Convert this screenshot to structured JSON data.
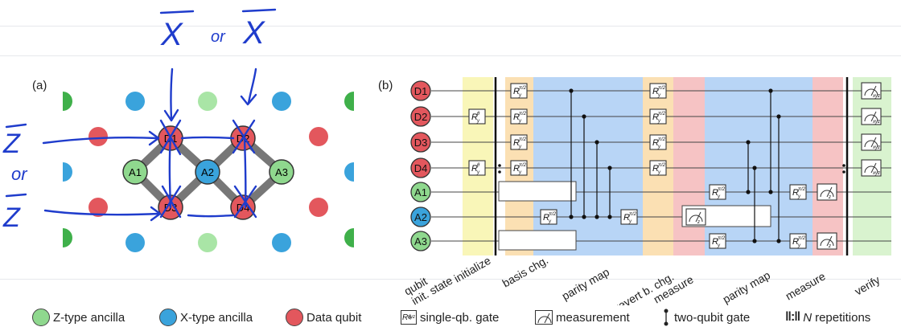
{
  "panel_a": {
    "label": "(a)",
    "data_qubits": [
      "D1",
      "D2",
      "D3",
      "D4"
    ],
    "ancillas": [
      "A1",
      "A2",
      "A3"
    ]
  },
  "annotations": {
    "top_left": "X",
    "top_or": "or",
    "top_right": "X",
    "left_top": "Z",
    "left_or": "or",
    "left_bottom": "Z"
  },
  "panel_b": {
    "label": "(b)",
    "qubits": [
      "D1",
      "D2",
      "D3",
      "D4",
      "A1",
      "A2",
      "A3"
    ],
    "phase_labels": [
      "qubit init. state",
      "initialize",
      "basis chg.",
      "parity map",
      "revert b. chg.",
      "measure",
      "parity map",
      "measure",
      "verify"
    ],
    "gate_labels": {
      "init": "R",
      "init_sup": "θ",
      "init_sub": "y",
      "half": "R",
      "half_sup": "π/2",
      "half_sub": "y",
      "meas_z": "z",
      "meas_xyz": "xyz"
    }
  },
  "legend": {
    "z_ancilla": "Z-type ancilla",
    "x_ancilla": "X-type ancilla",
    "data_qubit": "Data qubit",
    "single_gate": "single-qb. gate",
    "single_gate_sym": "R",
    "single_gate_sup": "θ",
    "single_gate_sub": "xyz",
    "measurement": "measurement",
    "two_qubit_gate": "two-qubit gate",
    "rep_symbol": "‖:‖",
    "repetitions_n": "N",
    "repetitions": "repetitions"
  },
  "colors": {
    "data_qubit": "#e3575d",
    "x_ancilla": "#3aa3dc",
    "z_ancilla": "#8fd88e",
    "z_ancilla_light": "#a9e5a6",
    "ink": "#1f3ccc",
    "yellow_band": "#f9f6b8",
    "orange_band": "#fbe0b3",
    "blue_band": "#b8d5f6",
    "red_band": "#f6c3c4",
    "green_band": "#d9f3cf"
  }
}
